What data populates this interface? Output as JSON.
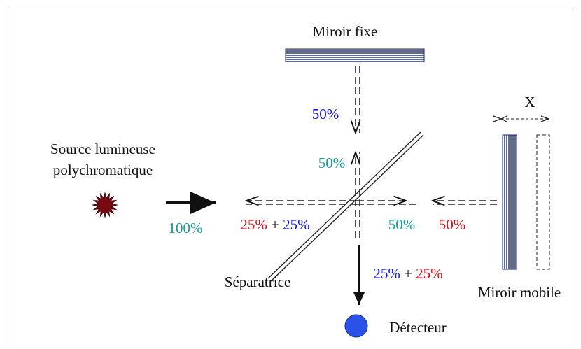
{
  "labels": {
    "fixed_mirror": "Miroir fixe",
    "source_line1": "Source lumineuse",
    "source_line2": "polychromatique",
    "splitter": "Séparatrice",
    "moving_mirror": "Miroir mobile",
    "detector": "Détecteur",
    "displacement": "X"
  },
  "beams": {
    "down_from_fixed": "50%",
    "up_to_fixed": "50%",
    "input": "100%",
    "return_left": [
      "25%",
      "+",
      "25%"
    ],
    "to_mobile": "50%",
    "from_mobile": "50%",
    "to_detector": [
      "25%",
      "+",
      "25%"
    ]
  }
}
